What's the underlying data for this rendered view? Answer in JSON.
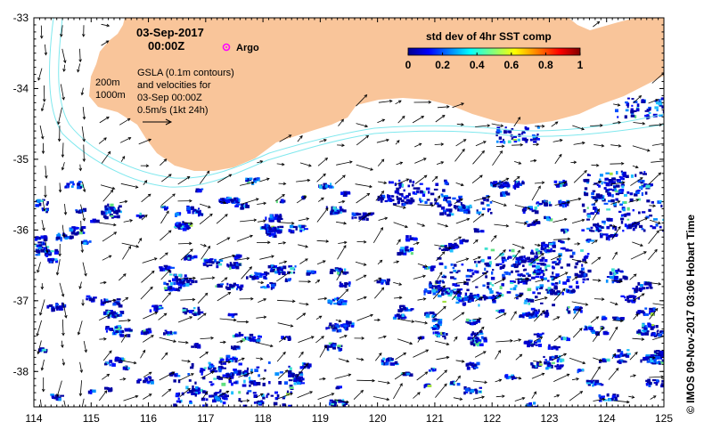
{
  "map": {
    "date_title": "03-Sep-2017",
    "time_title": "00:00Z",
    "argo_label": "Argo",
    "depth_labels": [
      "200m",
      "1000m"
    ],
    "gsla_lines": [
      "GSLA (0.1m contours)",
      "and velocities for",
      "03-Sep 00:00Z",
      "0.5m/s (1kt 24h)"
    ],
    "colorbar": {
      "title": "std dev of 4hr SST comp",
      "ticks": [
        "0",
        "0.2",
        "0.4",
        "0.6",
        "0.8",
        "1"
      ],
      "range": [
        0,
        1
      ]
    },
    "credit": "© IMOS 09-Nov-2017 03:06 Hobart Time",
    "axes": {
      "lon_ticks": [
        "114",
        "115",
        "116",
        "117",
        "118",
        "119",
        "120",
        "121",
        "122",
        "123",
        "124",
        "125"
      ],
      "lat_ticks": [
        "-33",
        "-34",
        "-35",
        "-36",
        "-37",
        "-38"
      ],
      "lon_range": [
        114,
        125
      ],
      "lat_range": [
        -38.5,
        -33
      ]
    },
    "colors": {
      "land": "#f9c59a",
      "isobath": "#7fe8ee",
      "argo_marker": "#ff00ff",
      "arrow": "#000000"
    },
    "icons": [
      "argo-marker-icon",
      "velocity-scale-arrow-icon"
    ]
  }
}
